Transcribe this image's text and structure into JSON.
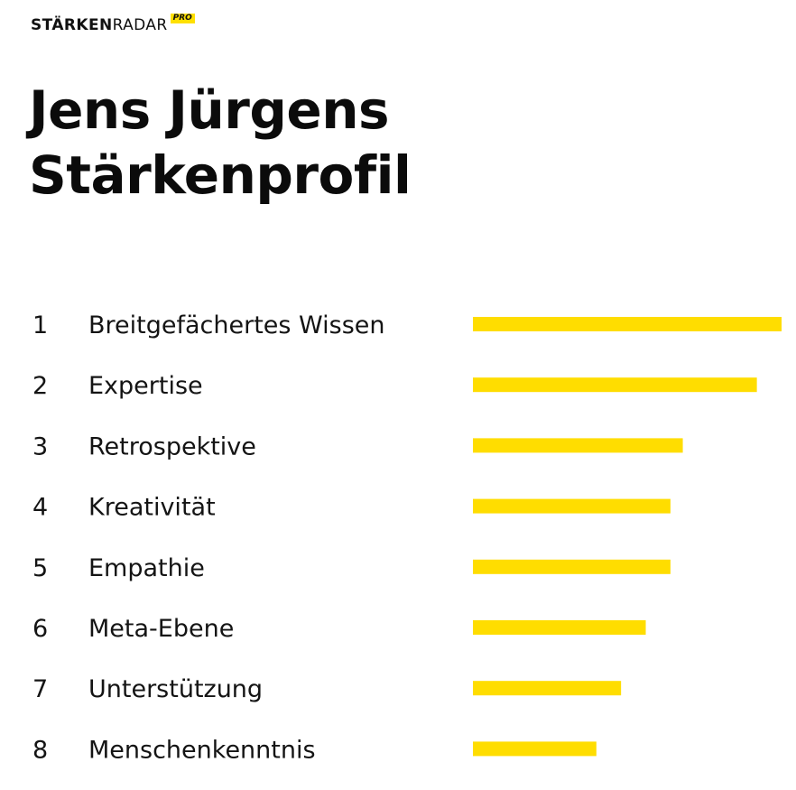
{
  "header": {
    "brand_bold": "STÄRKEN",
    "brand_light": "RADAR",
    "brand_badge": "PRO"
  },
  "title": {
    "line1": "Jens Jürgens",
    "line2": "Stärkenprofil"
  },
  "colors": {
    "bar": "#ffdd00",
    "text": "#111111"
  },
  "chart_data": {
    "type": "bar",
    "orientation": "horizontal",
    "title": "",
    "xlabel": "",
    "ylabel": "",
    "grid": false,
    "xlim": [
      0,
      100
    ],
    "ranks": [
      "1",
      "2",
      "3",
      "4",
      "5",
      "6",
      "7",
      "8"
    ],
    "categories": [
      "Breitgefächertes Wissen",
      "Expertise",
      "Retrospektive",
      "Kreativität",
      "Empathie",
      "Meta-Ebene",
      "Unterstützung",
      "Menschenkenntnis"
    ],
    "values": [
      100,
      92,
      68,
      64,
      64,
      56,
      48,
      40
    ]
  }
}
